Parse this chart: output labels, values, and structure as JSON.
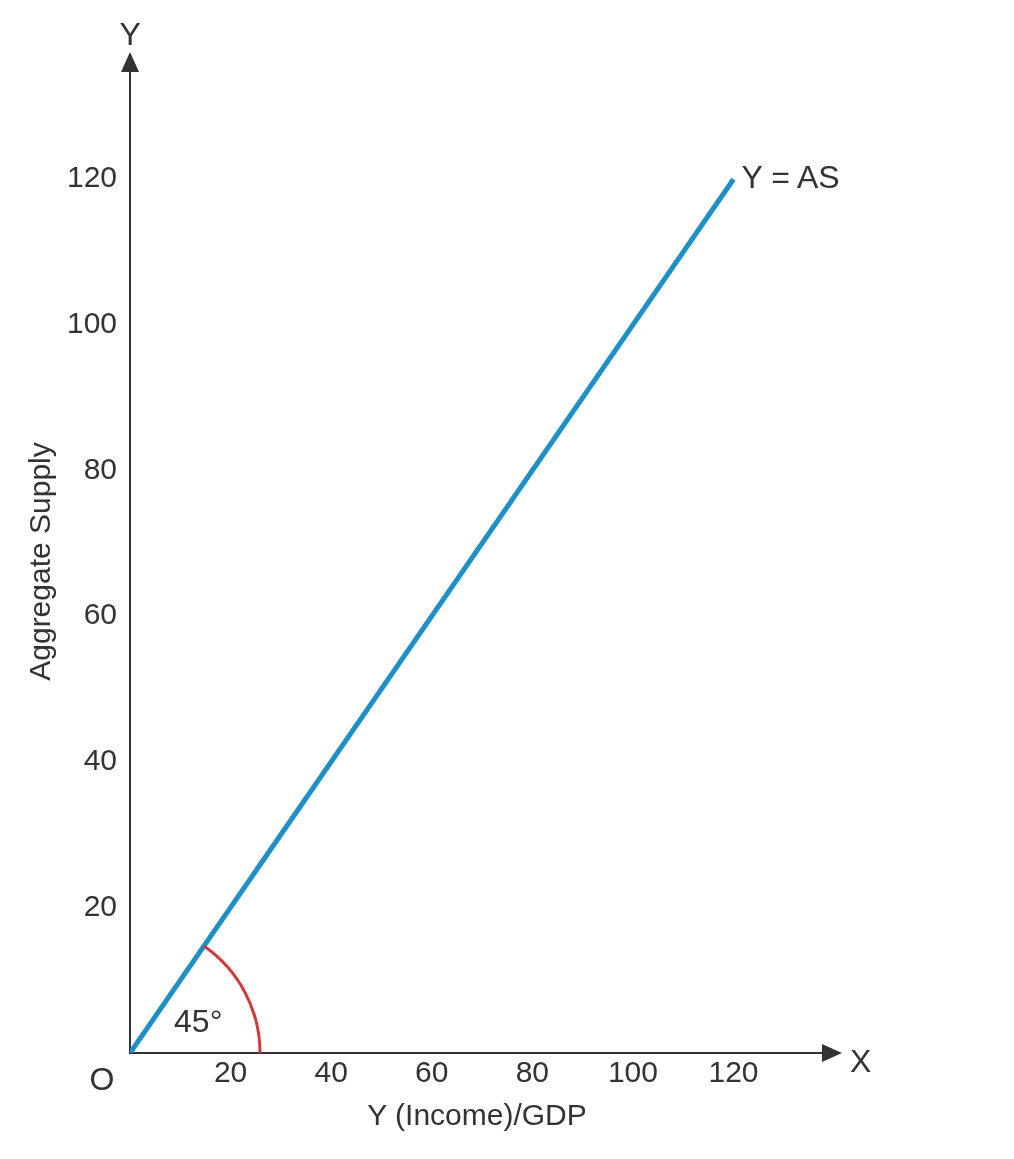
{
  "chart_data": {
    "type": "line",
    "xlabel": "Y (Income)/GDP",
    "ylabel": "Aggregate Supply",
    "x": [
      0,
      120
    ],
    "series": [
      {
        "name": "Y = AS",
        "color": "#1f8fc8",
        "values": [
          0,
          120
        ]
      }
    ],
    "xlim": [
      0,
      138
    ],
    "ylim": [
      0,
      135
    ],
    "xticks": [
      20,
      40,
      60,
      80,
      100,
      120
    ],
    "yticks": [
      20,
      40,
      60,
      80,
      100,
      120
    ],
    "grid": false,
    "legend": false,
    "marker": "none",
    "line_style": "solid",
    "annotations": [
      "O",
      "X",
      "Y",
      {
        "text": "45°",
        "x": 0,
        "y": 0
      }
    ]
  }
}
